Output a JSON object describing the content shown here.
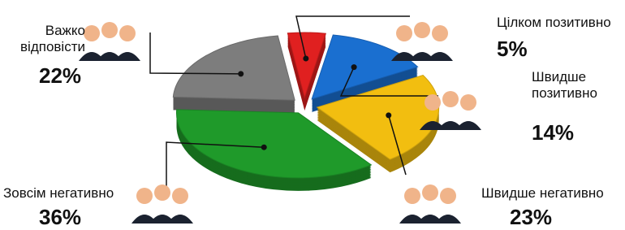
{
  "chart_data": {
    "type": "pie",
    "categories": [
      "Цілком позитивно",
      "Швидше позитивно",
      "Швидше негативно",
      "Зовсім негативно",
      "Важко відповісти"
    ],
    "values": [
      5,
      14,
      23,
      36,
      22
    ],
    "value_labels": [
      "5%",
      "14%",
      "23%",
      "36%",
      "22%"
    ],
    "colors": [
      "#e02020",
      "#1a6fd0",
      "#f2be10",
      "#1f9a2a",
      "#7d7d7d"
    ]
  }
}
